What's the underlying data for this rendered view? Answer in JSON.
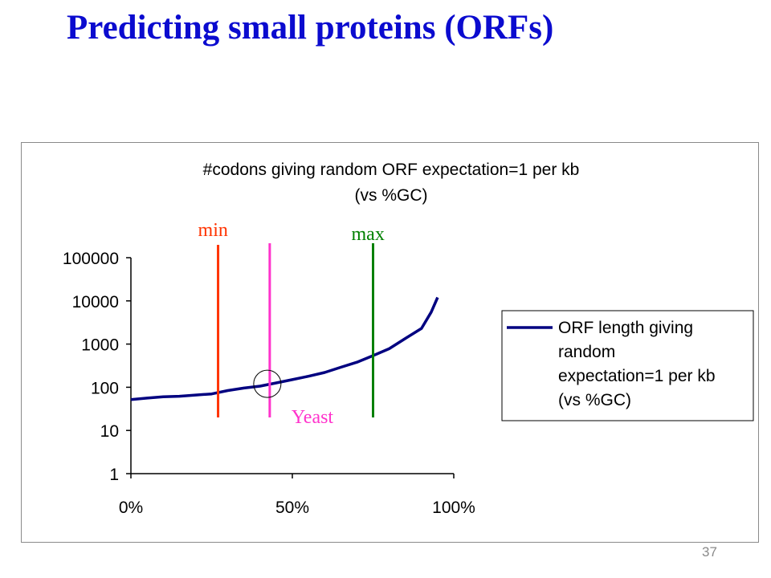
{
  "slide": {
    "title": "Predicting small proteins (ORFs)",
    "page_number": "37"
  },
  "colors": {
    "title": "#0b0bcf",
    "series": "#000080",
    "min_line": "#ff3300",
    "yeast_line": "#ff33cc",
    "max_line": "#008000"
  },
  "chart_data": {
    "type": "line",
    "title": "#codons giving random ORF expectation=1 per kb",
    "subtitle": "(vs %GC)",
    "xlabel": "",
    "ylabel": "",
    "xlim": [
      0,
      1
    ],
    "ylim": [
      1,
      100000
    ],
    "yscale": "log",
    "x_ticks": [
      0,
      0.5,
      1
    ],
    "x_tick_labels": [
      "0%",
      "50%",
      "100%"
    ],
    "y_ticks": [
      1,
      10,
      100,
      1000,
      10000,
      100000
    ],
    "y_tick_labels": [
      "1",
      "10",
      "100",
      "1000",
      "10000",
      "100000"
    ],
    "grid": false,
    "legend_position": "right",
    "series": [
      {
        "name": "ORF length giving random expectation=1 per kb (vs %GC)",
        "x": [
          0,
          0.05,
          0.1,
          0.15,
          0.2,
          0.25,
          0.3,
          0.35,
          0.4,
          0.45,
          0.5,
          0.55,
          0.6,
          0.65,
          0.7,
          0.75,
          0.8,
          0.85,
          0.9,
          0.93,
          0.95
        ],
        "y": [
          52,
          56,
          60,
          62,
          66,
          70,
          84,
          96,
          106,
          126,
          150,
          180,
          220,
          290,
          380,
          540,
          780,
          1350,
          2300,
          5500,
          12000
        ]
      }
    ],
    "annotations": [
      {
        "type": "vline",
        "x": 0.27,
        "label": "min",
        "color": "#ff3300"
      },
      {
        "type": "vline",
        "x": 0.43,
        "label": "Yeast",
        "color": "#ff33cc",
        "circle_y": 120
      },
      {
        "type": "vline",
        "x": 0.75,
        "label": "max",
        "color": "#008000"
      }
    ]
  }
}
